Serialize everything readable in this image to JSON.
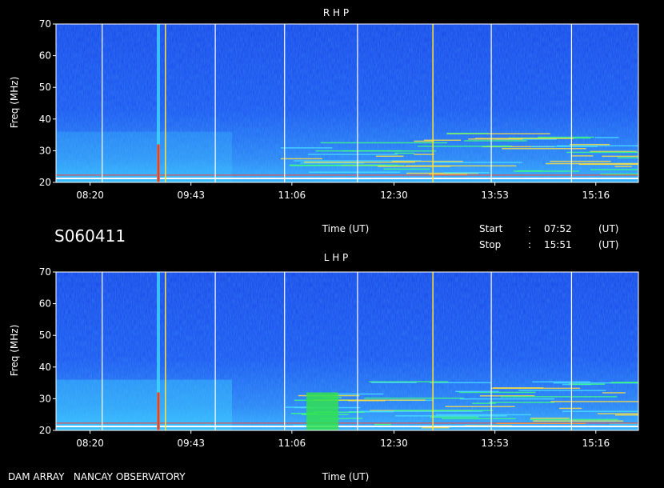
{
  "header": {
    "session_id": "S060411",
    "start_label": "Start",
    "stop_label": "Stop",
    "sep": ":",
    "start_time": "07:52",
    "stop_time": "15:51",
    "unit": "(UT)"
  },
  "footer": {
    "credit": "DAM ARRAY   NANCAY OBSERVATORY"
  },
  "colors": {
    "bg": "#000000",
    "spectrum_base": "#1a3cf0",
    "burst": "#3fd4ff",
    "band": "#40ff60",
    "hot": "#ff3a10"
  },
  "chart_data": [
    {
      "type": "heatmap",
      "title": "R H P",
      "xlabel": "Time (UT)",
      "ylabel": "Freq (MHz)",
      "x_ticks": [
        "08:20",
        "09:43",
        "11:06",
        "12:30",
        "13:53",
        "15:16"
      ],
      "y_ticks": [
        20,
        30,
        40,
        50,
        60,
        70
      ],
      "xlim": [
        "07:52",
        "15:51"
      ],
      "ylim": [
        20,
        70
      ],
      "white_lines": [
        "08:30",
        "10:03",
        "11:00",
        "12:00",
        "13:50",
        "14:56"
      ],
      "yellow_lines": [
        "09:22",
        "13:02"
      ]
    },
    {
      "type": "heatmap",
      "title": "L H P",
      "xlabel": "Time (UT)",
      "ylabel": "Freq (MHz)",
      "x_ticks": [
        "08:20",
        "09:43",
        "11:06",
        "12:30",
        "13:53",
        "15:16"
      ],
      "y_ticks": [
        20,
        30,
        40,
        50,
        60,
        70
      ],
      "xlim": [
        "07:52",
        "15:51"
      ],
      "ylim": [
        20,
        70
      ],
      "white_lines": [
        "08:30",
        "10:03",
        "11:00",
        "12:00",
        "13:50",
        "14:56"
      ],
      "yellow_lines": [
        "09:22",
        "13:02"
      ]
    }
  ]
}
